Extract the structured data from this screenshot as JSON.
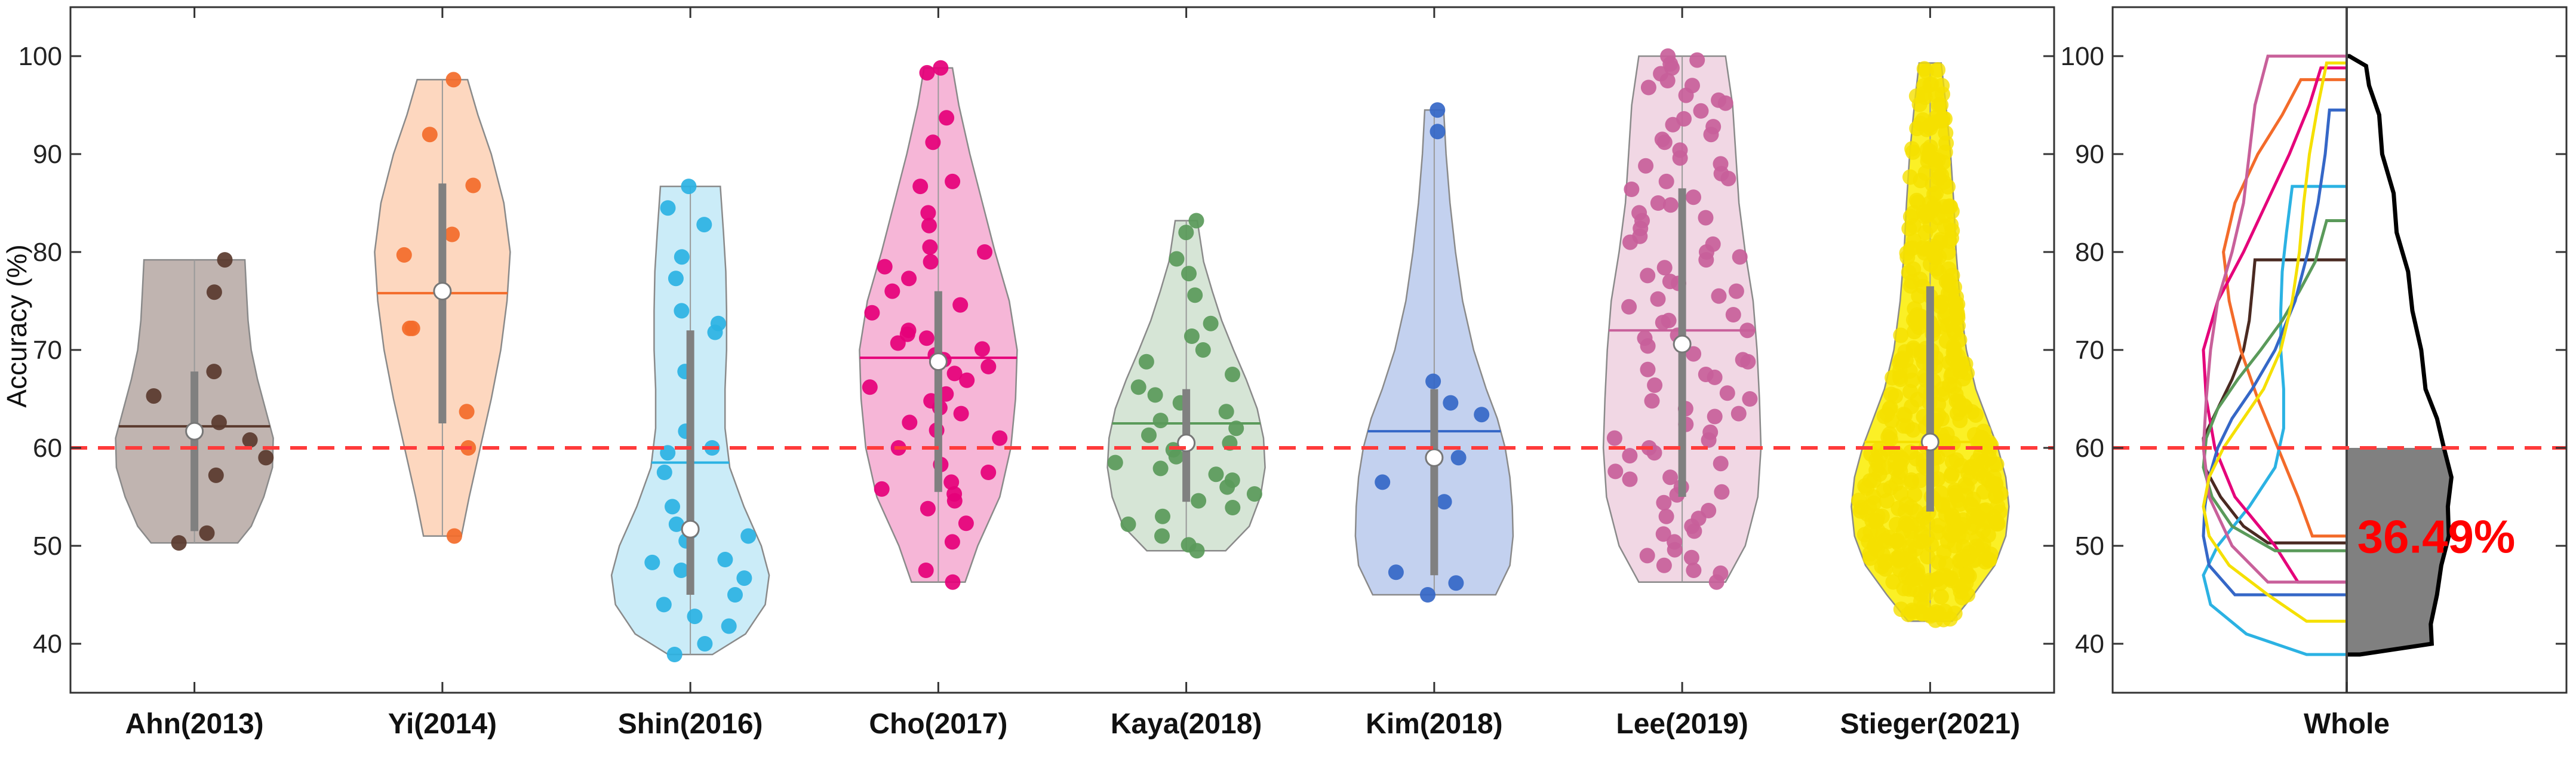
{
  "chart_data": [
    {
      "type": "violin",
      "ylabel": "Accuracy (%)",
      "ylim": [
        35,
        105
      ],
      "yticks": [
        40,
        50,
        60,
        70,
        80,
        90,
        100
      ],
      "chance_level": 60,
      "grid": false,
      "categories": [
        "Ahn(2013)",
        "Yi(2014)",
        "Shin(2016)",
        "Cho(2017)",
        "Kaya(2018)",
        "Kim(2018)",
        "Lee(2019)",
        "Stieger(2021)"
      ],
      "series": [
        {
          "name": "Ahn(2013)",
          "color": "#5a3a2e",
          "fill": "#b5a7a2",
          "min": 50.3,
          "max": 79.2,
          "mean": 62.2,
          "median": 61.7,
          "q1": 51.5,
          "q3": 67.8,
          "profile": [
            [
              50.3,
              0.55
            ],
            [
              52,
              0.72
            ],
            [
              55,
              0.88
            ],
            [
              58,
              0.99
            ],
            [
              61,
              1.0
            ],
            [
              64,
              0.9
            ],
            [
              67,
              0.8
            ],
            [
              70,
              0.72
            ],
            [
              73,
              0.68
            ],
            [
              76,
              0.66
            ],
            [
              79.2,
              0.64
            ]
          ],
          "points": [
            57.2,
            50.3,
            51.3,
            59.0,
            62.6,
            67.8,
            65.3,
            60.8,
            75.9,
            79.2
          ]
        },
        {
          "name": "Yi(2014)",
          "color": "#f36b2a",
          "fill": "#fdd0b4",
          "min": 51.0,
          "max": 97.6,
          "mean": 75.8,
          "median": 76.0,
          "q1": 62.5,
          "q3": 87.0,
          "profile": [
            [
              51,
              0.24
            ],
            [
              55,
              0.34
            ],
            [
              60,
              0.48
            ],
            [
              65,
              0.62
            ],
            [
              70,
              0.74
            ],
            [
              75,
              0.82
            ],
            [
              80,
              0.86
            ],
            [
              85,
              0.78
            ],
            [
              90,
              0.62
            ],
            [
              94,
              0.45
            ],
            [
              97.6,
              0.32
            ]
          ],
          "points": [
            97.6,
            92.0,
            86.8,
            79.7,
            81.8,
            72.2,
            72.2,
            63.7,
            60.0,
            51.0
          ]
        },
        {
          "name": "Shin(2016)",
          "color": "#2bb2e3",
          "fill": "#c2e9f7",
          "min": 38.9,
          "max": 86.7,
          "mean": 58.5,
          "median": 51.7,
          "q1": 45.0,
          "q3": 72.0,
          "profile": [
            [
              38.9,
              0.28
            ],
            [
              41,
              0.7
            ],
            [
              44,
              0.95
            ],
            [
              47,
              1.0
            ],
            [
              50,
              0.9
            ],
            [
              54,
              0.68
            ],
            [
              58,
              0.5
            ],
            [
              62,
              0.44
            ],
            [
              66,
              0.44
            ],
            [
              70,
              0.46
            ],
            [
              74,
              0.46
            ],
            [
              78,
              0.45
            ],
            [
              82,
              0.42
            ],
            [
              86.7,
              0.38
            ]
          ],
          "points": [
            84.5,
            86.7,
            82.8,
            79.5,
            77.3,
            74.0,
            72.7,
            71.8,
            67.8,
            61.7,
            60.0,
            59.5,
            57.5,
            54.0,
            52.2,
            51.5,
            51.0,
            50.5,
            48.6,
            48.3,
            47.5,
            46.7,
            45.0,
            44.0,
            42.8,
            41.8,
            40.0,
            38.9
          ]
        },
        {
          "name": "Cho(2017)",
          "color": "#e5007a",
          "fill": "#f5a9d0",
          "min": 46.3,
          "max": 98.8,
          "mean": 69.2,
          "median": 68.8,
          "q1": 55.5,
          "q3": 76.0,
          "profile": [
            [
              46.3,
              0.34
            ],
            [
              50,
              0.5
            ],
            [
              55,
              0.78
            ],
            [
              60,
              0.92
            ],
            [
              65,
              0.98
            ],
            [
              70,
              1.0
            ],
            [
              75,
              0.9
            ],
            [
              80,
              0.72
            ],
            [
              85,
              0.56
            ],
            [
              90,
              0.4
            ],
            [
              95,
              0.26
            ],
            [
              98.8,
              0.18
            ]
          ],
          "points": [
            98.8,
            98.3,
            93.7,
            91.2,
            87.2,
            86.7,
            84.0,
            82.7,
            80.5,
            80.0,
            79.0,
            78.5,
            77.3,
            76.0,
            74.6,
            73.8,
            72.0,
            71.6,
            71.2,
            70.7,
            70.1,
            69.5,
            69.0,
            68.3,
            67.6,
            66.9,
            66.2,
            65.5,
            64.8,
            64.1,
            63.5,
            62.6,
            61.8,
            61.0,
            60.0,
            58.3,
            57.5,
            56.5,
            55.8,
            55.3,
            54.6,
            53.8,
            52.3,
            50.4,
            47.5,
            46.3
          ]
        },
        {
          "name": "Kaya(2018)",
          "color": "#5a9a5a",
          "fill": "#cfe0cf",
          "min": 49.5,
          "max": 83.2,
          "mean": 62.5,
          "median": 60.5,
          "q1": 54.5,
          "q3": 66.0,
          "profile": [
            [
              49.5,
              0.5
            ],
            [
              52,
              0.8
            ],
            [
              55,
              0.94
            ],
            [
              58,
              1.0
            ],
            [
              61,
              0.98
            ],
            [
              64,
              0.9
            ],
            [
              67,
              0.76
            ],
            [
              70,
              0.6
            ],
            [
              73,
              0.45
            ],
            [
              76,
              0.33
            ],
            [
              79,
              0.22
            ],
            [
              83.2,
              0.14
            ]
          ],
          "points": [
            83.2,
            82.0,
            79.3,
            77.8,
            75.6,
            72.7,
            71.4,
            70.0,
            68.8,
            67.5,
            66.2,
            65.4,
            64.6,
            63.7,
            62.8,
            62.0,
            61.3,
            60.5,
            59.8,
            59.1,
            58.5,
            57.9,
            57.3,
            56.7,
            56.0,
            55.3,
            54.6,
            53.9,
            53.0,
            52.2,
            51.0,
            50.1,
            49.5
          ]
        },
        {
          "name": "Kim(2018)",
          "color": "#3567c7",
          "fill": "#b9c9ec",
          "min": 45.0,
          "max": 94.5,
          "mean": 61.7,
          "median": 59.0,
          "q1": 47.0,
          "q3": 66.0,
          "profile": [
            [
              45,
              0.78
            ],
            [
              48,
              0.96
            ],
            [
              51,
              1.0
            ],
            [
              54,
              0.99
            ],
            [
              57,
              0.96
            ],
            [
              60,
              0.9
            ],
            [
              63,
              0.8
            ],
            [
              66,
              0.66
            ],
            [
              70,
              0.5
            ],
            [
              75,
              0.36
            ],
            [
              80,
              0.27
            ],
            [
              85,
              0.2
            ],
            [
              90,
              0.15
            ],
            [
              94.5,
              0.12
            ]
          ],
          "points": [
            94.5,
            92.3,
            66.8,
            64.6,
            63.4,
            59.0,
            56.5,
            54.5,
            47.3,
            46.2,
            45.0
          ]
        },
        {
          "name": "Lee(2019)",
          "color": "#c8609a",
          "fill": "#eed0df",
          "min": 46.3,
          "max": 100.0,
          "mean": 72.0,
          "median": 70.6,
          "q1": 55.0,
          "q3": 86.5,
          "profile": [
            [
              46.3,
              0.55
            ],
            [
              50,
              0.8
            ],
            [
              55,
              0.96
            ],
            [
              60,
              1.0
            ],
            [
              65,
              0.98
            ],
            [
              70,
              0.95
            ],
            [
              75,
              0.9
            ],
            [
              80,
              0.8
            ],
            [
              85,
              0.72
            ],
            [
              90,
              0.68
            ],
            [
              95,
              0.64
            ],
            [
              100,
              0.55
            ]
          ],
          "points": [
            100,
            99.6,
            99.2,
            98.8,
            98.2,
            97.5,
            96.8,
            96.0,
            95.2,
            94.4,
            93.6,
            92.8,
            92.0,
            91.2,
            90.4,
            89.6,
            88.8,
            88.0,
            87.2,
            86.4,
            85.6,
            84.8,
            84.0,
            83.2,
            82.4,
            81.6,
            80.8,
            80.0,
            79.2,
            78.4,
            77.6,
            76.8,
            76.0,
            75.2,
            74.4,
            73.6,
            72.8,
            72.0,
            71.2,
            70.4,
            69.6,
            68.8,
            68.0,
            67.2,
            66.4,
            65.6,
            64.8,
            64.0,
            63.2,
            62.4,
            61.6,
            60.8,
            60.0,
            59.2,
            58.4,
            57.6,
            56.8,
            56.0,
            55.2,
            54.4,
            53.6,
            52.8,
            52.0,
            51.2,
            50.4,
            49.6,
            48.8,
            48.0,
            47.2,
            46.3,
            97.0,
            93.0,
            89.0,
            85.0,
            81.0,
            77.0,
            73.0,
            69.0,
            65.0,
            61.0,
            57.0,
            53.0,
            49.0,
            95.5,
            91.5,
            87.5,
            83.5,
            79.5,
            75.5,
            71.5,
            67.5,
            63.5,
            59.5,
            55.5,
            51.5,
            47.5
          ]
        },
        {
          "name": "Stieger(2021)",
          "color": "#f5e000",
          "fill": "#faed00",
          "min": 42.3,
          "max": 99.3,
          "mean": 60.6,
          "median": 60.6,
          "q1": 53.5,
          "q3": 76.5,
          "profile": [
            [
              42.3,
              0.28
            ],
            [
              45,
              0.55
            ],
            [
              48,
              0.82
            ],
            [
              51,
              0.96
            ],
            [
              54,
              1.0
            ],
            [
              57,
              0.96
            ],
            [
              60,
              0.86
            ],
            [
              63,
              0.72
            ],
            [
              66,
              0.58
            ],
            [
              70,
              0.46
            ],
            [
              75,
              0.38
            ],
            [
              80,
              0.33
            ],
            [
              85,
              0.3
            ],
            [
              90,
              0.26
            ],
            [
              95,
              0.2
            ],
            [
              99.3,
              0.14
            ]
          ],
          "points": []
        }
      ]
    },
    {
      "type": "line",
      "xlabel": "Whole",
      "ylim": [
        35,
        105
      ],
      "yticks": [
        40,
        50,
        60,
        70,
        80,
        90,
        100
      ],
      "chance_level": 60,
      "annotation": "36.49%",
      "annotation_color": "#ff0000",
      "below_chance_fill": "#808080"
    }
  ]
}
